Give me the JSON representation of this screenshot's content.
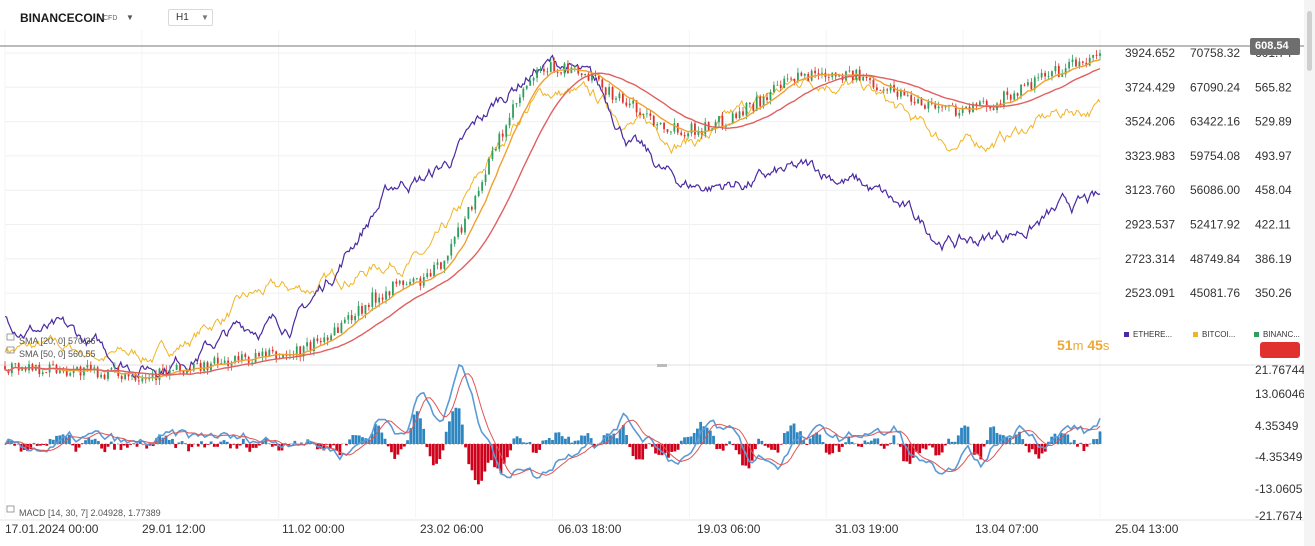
{
  "header": {
    "symbol": "BINANCECOIN",
    "symbol_suffix": "CFD",
    "timeframe": "H1"
  },
  "timer": {
    "minutes": "51",
    "minutes_unit": "m",
    "seconds": "45",
    "seconds_unit": "s"
  },
  "indicators": {
    "sma1": "SMA [20, 0] 570.36",
    "sma2": "SMA [50, 0] 560.55",
    "macd": "MACD [14, 30, 7] 2.04928, 1.77389"
  },
  "current_price_label": "608.54",
  "legend": [
    {
      "name": "ETHERE...",
      "color": "#4b2aa0"
    },
    {
      "name": "BITCOI...",
      "color": "#f0b525"
    },
    {
      "name": "BINANC...",
      "color": "#2e9e5e"
    }
  ],
  "axes": {
    "eth_ticks": [
      "3924.652",
      "3724.429",
      "3524.206",
      "3323.983",
      "3123.760",
      "2923.537",
      "2723.314",
      "2523.091"
    ],
    "btc_ticks": [
      "70758.32",
      "67090.24",
      "63422.16",
      "59754.08",
      "56086.00",
      "52417.92",
      "48749.84",
      "45081.76"
    ],
    "bnb_ticks": [
      "601.74",
      "565.82",
      "529.89",
      "493.97",
      "458.04",
      "422.11",
      "386.19",
      "350.26"
    ],
    "macd_ticks": [
      "21.76744",
      "13.06046",
      "4.35349",
      "-4.35349",
      "-13.0605",
      "-21.7674"
    ],
    "x_ticks": [
      "17.01.2024  00:00",
      "29.01  12:00",
      "11.02  00:00",
      "23.02  06:00",
      "06.03  18:00",
      "19.03  06:00",
      "31.03  19:00",
      "13.04  07:00",
      "25.04  13:00"
    ]
  },
  "colors": {
    "eth": "#4b2aa0",
    "btc": "#f0b525",
    "bnb_up": "#2e9e5e",
    "bnb_down": "#d9342b",
    "sma20": "#f0a030",
    "sma50": "#e06060",
    "macd_pos": "#2e86c1",
    "macd_neg": "#d0021b"
  },
  "chart_data": {
    "type": "line",
    "x": [
      "17.01.2024",
      "29.01",
      "11.02",
      "23.02",
      "06.03",
      "19.03",
      "31.03",
      "13.04",
      "25.04"
    ],
    "series": [
      {
        "name": "ETHERE...",
        "axis": "eth",
        "values": [
          2560,
          2320,
          2540,
          3320,
          3940,
          3280,
          3340,
          2980,
          3170
        ]
      },
      {
        "name": "BITCOI...",
        "axis": "btc",
        "values": [
          42800,
          42000,
          48200,
          51800,
          68200,
          63800,
          69800,
          63000,
          66800
        ]
      },
      {
        "name": "BINANC...",
        "axis": "bnb",
        "values": [
          310,
          302,
          320,
          392,
          600,
          540,
          596,
          560,
          608
        ]
      }
    ],
    "eth_range": [
      2323,
      4125
    ],
    "btc_range": [
      41414,
      74426
    ],
    "bnb_range": [
      314,
      637
    ],
    "macd": {
      "range": [
        -21.7674,
        21.76744
      ],
      "values": [
        0.5,
        -1,
        1,
        -1.5,
        0.8,
        2,
        1.5,
        3,
        -2,
        8,
        15,
        22,
        -12,
        -8,
        5,
        9,
        -6,
        8,
        -10,
        3,
        2,
        6,
        -14,
        -9,
        6,
        4,
        9
      ]
    },
    "last_price": 608.54
  }
}
